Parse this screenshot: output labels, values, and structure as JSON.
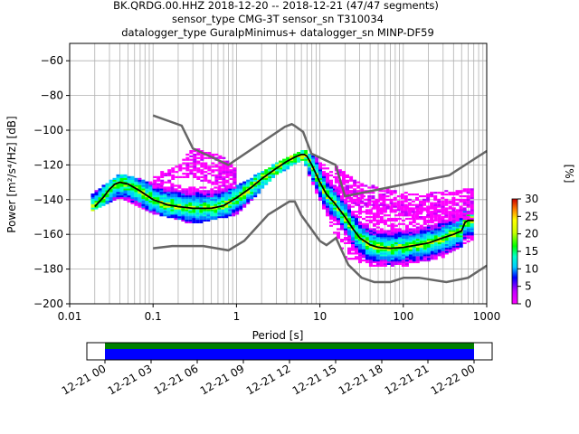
{
  "chart_data": {
    "type": "heatmap",
    "title_lines": [
      "BK.QRDG.00.HHZ   2018-12-20 -- 2018-12-21  (47/47 segments)",
      "sensor_type CMG-3T sensor_sn T310034",
      "datalogger_type GuralpMinimus+ datalogger_sn MINP-DF59"
    ],
    "xlabel": "Period [s]",
    "ylabel": "Power [m²/s⁴/Hz] [dB]",
    "x_scale": "log",
    "xlim": [
      0.01,
      1000
    ],
    "ylim": [
      -200,
      -50
    ],
    "x_ticks": [
      {
        "value": 0.01,
        "label": "0.01"
      },
      {
        "value": 0.1,
        "label": "0.1"
      },
      {
        "value": 1,
        "label": "1"
      },
      {
        "value": 10,
        "label": "10"
      },
      {
        "value": 100,
        "label": "100"
      },
      {
        "value": 1000,
        "label": "1000"
      }
    ],
    "y_ticks": [
      -60,
      -80,
      -100,
      -120,
      -140,
      -160,
      -180,
      -200
    ],
    "grid": true,
    "colorbar": {
      "label": "[%]",
      "range": [
        0,
        30
      ],
      "ticks": [
        0,
        5,
        10,
        15,
        20,
        25,
        30
      ]
    },
    "noise_models": {
      "high": {
        "period": [
          0.1,
          0.22,
          0.3,
          0.8,
          3.8,
          4.6,
          5.0,
          6.3,
          7.9,
          15.4,
          20,
          354.8,
          1000
        ],
        "db": [
          -91.5,
          -97.4,
          -110.5,
          -120,
          -98,
          -96.5,
          -97.5,
          -101,
          -113.5,
          -120,
          -138,
          -126,
          -112
        ]
      },
      "low": {
        "period": [
          0.1,
          0.17,
          0.4,
          0.8,
          1.24,
          2.4,
          4.3,
          5.0,
          6.0,
          10.0,
          12.0,
          15.6,
          21.9,
          31.6,
          45,
          70,
          101,
          154,
          328,
          600,
          1000
        ],
        "db": [
          -168,
          -166.7,
          -166.7,
          -169.2,
          -163.7,
          -148.6,
          -141.1,
          -141.1,
          -149,
          -163.8,
          -166.2,
          -162.1,
          -177.5,
          -185,
          -187.5,
          -187.5,
          -185,
          -185,
          -187.5,
          -185,
          -178
        ]
      }
    },
    "mean_curve": {
      "period": [
        0.02,
        0.025,
        0.03,
        0.035,
        0.04,
        0.05,
        0.07,
        0.1,
        0.15,
        0.2,
        0.3,
        0.5,
        0.7,
        1,
        1.5,
        2,
        3,
        4,
        5,
        6,
        6.5,
        7,
        8,
        10,
        12,
        15,
        20,
        25,
        30,
        40,
        50,
        70,
        100,
        150,
        200,
        300,
        400,
        500,
        550,
        600,
        700
      ],
      "db": [
        -144,
        -139,
        -134,
        -131,
        -130,
        -131,
        -135,
        -140,
        -143,
        -144,
        -145,
        -145,
        -143.5,
        -139,
        -133,
        -128,
        -122,
        -118,
        -115.5,
        -114,
        -114,
        -115,
        -120,
        -130,
        -137,
        -142,
        -150,
        -157,
        -162,
        -166,
        -167.5,
        -168,
        -167.5,
        -166,
        -165,
        -162,
        -160,
        -158,
        -153,
        -152,
        -152
      ]
    },
    "density_bands": [
      {
        "period": [
          0.018,
          0.04,
          0.1,
          0.3,
          1,
          3,
          6.3,
          10,
          20,
          40,
          100,
          300,
          700
        ],
        "upper_db": [
          -138,
          -126,
          -131,
          -133,
          -133,
          -120,
          -112,
          -118,
          -133,
          -141,
          -145,
          -144,
          -148
        ],
        "lower_db": [
          -146,
          -138,
          -147,
          -153,
          -148,
          -125,
          -116,
          -140,
          -172,
          -178,
          -178,
          -172,
          -162
        ]
      },
      {
        "period": [
          0.1,
          0.2,
          0.3,
          0.6,
          1
        ],
        "upper_db": [
          -127,
          -121,
          -111,
          -115,
          -121
        ],
        "lower_db": [
          -133,
          -127,
          -127,
          -131,
          -133
        ]
      },
      {
        "period": [
          15,
          30,
          70,
          150,
          300,
          700
        ],
        "upper_db": [
          -121,
          -131,
          -135,
          -138,
          -136,
          -134
        ],
        "lower_db": [
          -133,
          -143,
          -146,
          -150,
          -152,
          -150
        ]
      }
    ],
    "timeline": {
      "tick_labels": [
        "12-21 00",
        "12-21 03",
        "12-21 06",
        "12-21 09",
        "12-21 12",
        "12-21 15",
        "12-21 18",
        "12-21 21",
        "12-22 00"
      ],
      "bar_colors": [
        "#008000",
        "#0000ff"
      ],
      "coverage": [
        0,
        1
      ]
    }
  }
}
